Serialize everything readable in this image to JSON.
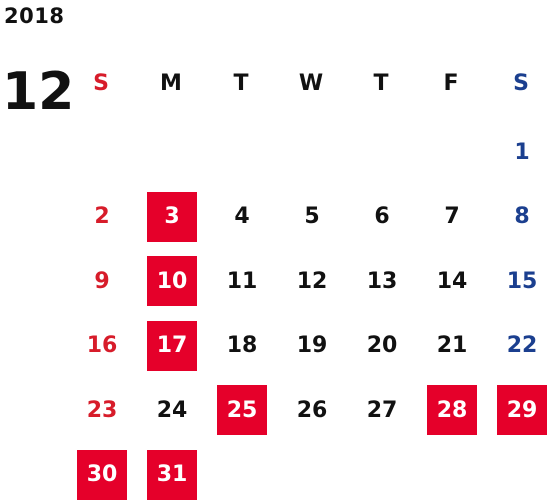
{
  "calendar": {
    "year": "2018",
    "month": "12",
    "weekdays": [
      "S",
      "M",
      "T",
      "W",
      "T",
      "F",
      "S"
    ],
    "colors": {
      "sunday": "#d71c2a",
      "saturday": "#1b3f8f",
      "holiday_bg": "#e5002a",
      "holiday_text": "#ffffff",
      "weekday_text": "#111111"
    },
    "leading_blank_days": 6,
    "days": [
      {
        "label": "1",
        "highlighted": false
      },
      {
        "label": "2",
        "highlighted": false
      },
      {
        "label": "3",
        "highlighted": true
      },
      {
        "label": "4",
        "highlighted": false
      },
      {
        "label": "5",
        "highlighted": false
      },
      {
        "label": "6",
        "highlighted": false
      },
      {
        "label": "7",
        "highlighted": false
      },
      {
        "label": "8",
        "highlighted": false
      },
      {
        "label": "9",
        "highlighted": false
      },
      {
        "label": "10",
        "highlighted": true
      },
      {
        "label": "11",
        "highlighted": false
      },
      {
        "label": "12",
        "highlighted": false
      },
      {
        "label": "13",
        "highlighted": false
      },
      {
        "label": "14",
        "highlighted": false
      },
      {
        "label": "15",
        "highlighted": false
      },
      {
        "label": "16",
        "highlighted": false
      },
      {
        "label": "17",
        "highlighted": true
      },
      {
        "label": "18",
        "highlighted": false
      },
      {
        "label": "19",
        "highlighted": false
      },
      {
        "label": "20",
        "highlighted": false
      },
      {
        "label": "21",
        "highlighted": false
      },
      {
        "label": "22",
        "highlighted": false
      },
      {
        "label": "23",
        "highlighted": false
      },
      {
        "label": "24",
        "highlighted": false
      },
      {
        "label": "25",
        "highlighted": true
      },
      {
        "label": "26",
        "highlighted": false
      },
      {
        "label": "27",
        "highlighted": false
      },
      {
        "label": "28",
        "highlighted": true
      },
      {
        "label": "29",
        "highlighted": true
      },
      {
        "label": "30",
        "highlighted": true
      },
      {
        "label": "31",
        "highlighted": true
      }
    ]
  }
}
